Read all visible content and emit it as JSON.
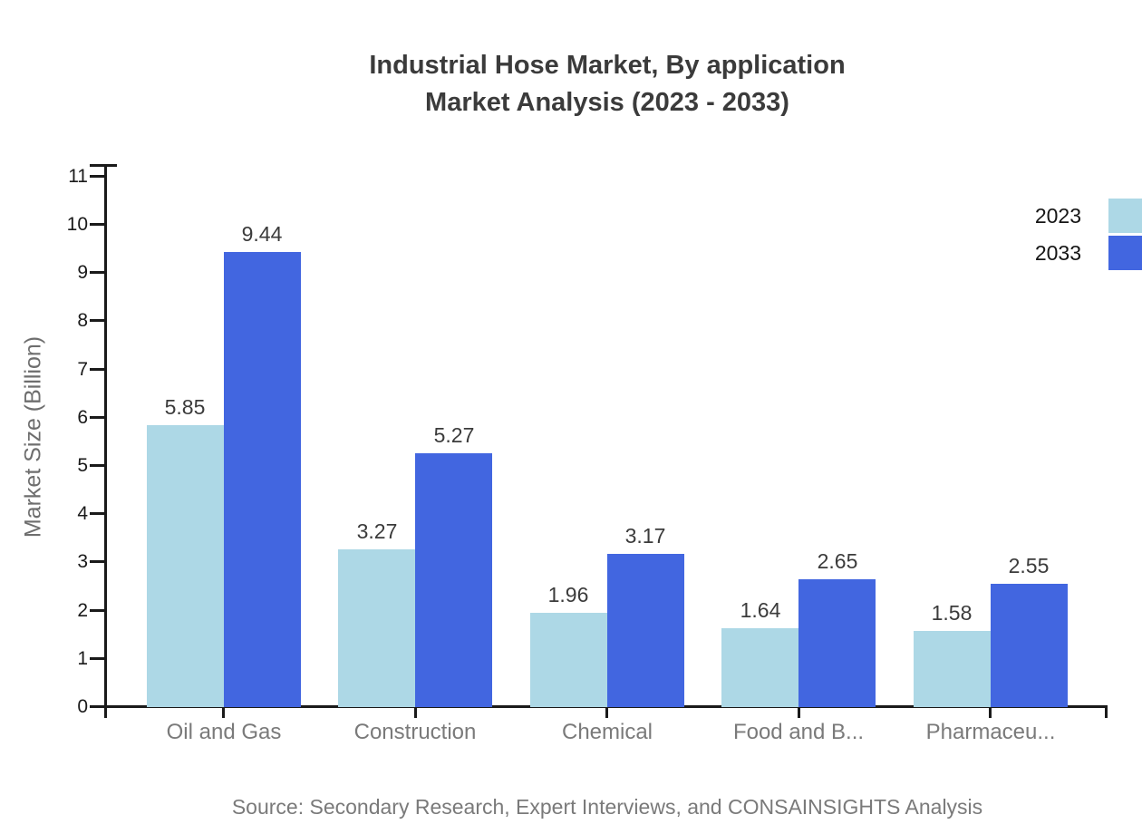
{
  "page": {
    "source_note": "Source: Secondary Research, Expert Interviews, and CONSAINSIGHTS Analysis"
  },
  "chart_data": {
    "type": "bar",
    "title": "Industrial Hose Market, By application Market Analysis (2023 - 2033)",
    "title_lines": [
      "Industrial Hose Market, By application",
      "Market Analysis (2023 - 2033)"
    ],
    "ylabel": "Market Size (Billion)",
    "xlabel": "",
    "categories": [
      "Oil and Gas",
      "Construction",
      "Chemical",
      "Food and B...",
      "Pharmaceu..."
    ],
    "series": [
      {
        "name": "2023",
        "color": "#add8e6",
        "values": [
          5.85,
          3.27,
          1.96,
          1.64,
          1.58
        ]
      },
      {
        "name": "2033",
        "color": "#4266e0",
        "values": [
          9.44,
          5.27,
          3.17,
          2.65,
          2.55
        ]
      }
    ],
    "ylim": [
      0,
      11.25
    ],
    "y_ticks": [
      0,
      1,
      2,
      3,
      4,
      5,
      6,
      7,
      8,
      9,
      10,
      11
    ],
    "grid": false,
    "legend_position": "top-right",
    "value_labels_shown": true,
    "colors": {
      "axis": "#1a1a1a",
      "title_text": "#3b3b3b",
      "y_tick_text": "#1a1a1a",
      "category_text": "#7a7a7a",
      "value_label_text": "#3b3b3b",
      "y_axis_title_text": "#6e6e6e",
      "source_text": "#7a7a7a",
      "background": "#ffffff"
    }
  }
}
